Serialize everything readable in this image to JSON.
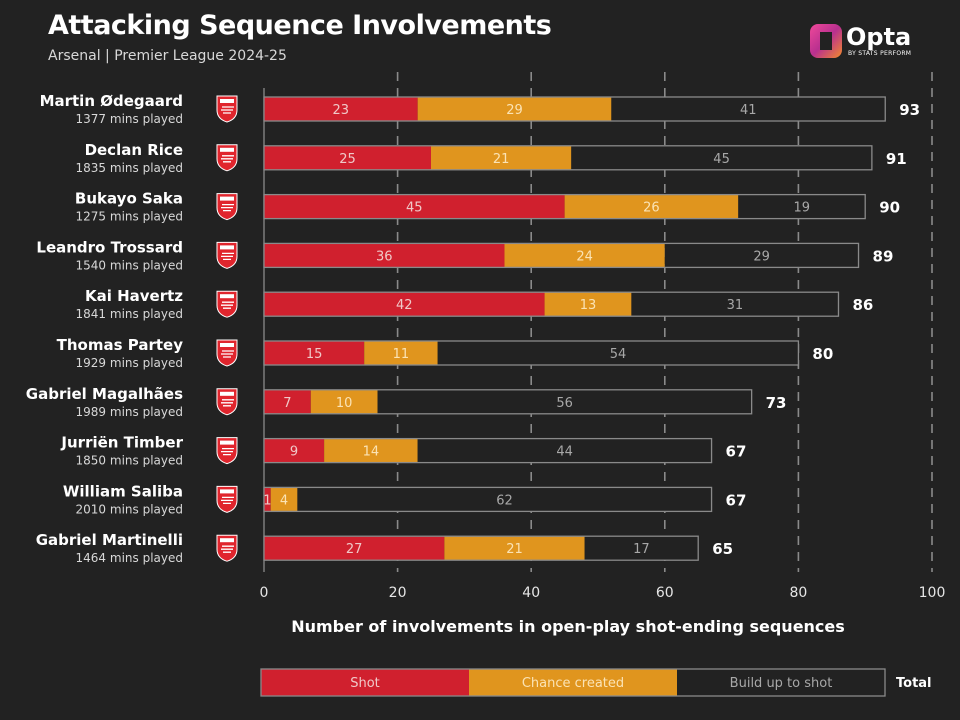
{
  "header": {
    "title": "Attacking Sequence Involvements",
    "subtitle": "Arsenal | Premier League 2024-25"
  },
  "logo": {
    "word": "Opta",
    "tag": "BY STATS PERFORM"
  },
  "colors": {
    "background": "#222222",
    "shot": "#d0202e",
    "chance": "#e0951e",
    "buildup": "#222222",
    "outline": "#8a8a8a",
    "grid": "#8a8a8a",
    "crest": "#e0252d"
  },
  "chart_data": {
    "type": "bar",
    "orientation": "horizontal",
    "stacked": true,
    "title": "Attacking Sequence Involvements",
    "subtitle": "Arsenal | Premier League 2024-25",
    "xlabel": "Number of involvements in open-play shot-ending sequences",
    "ylabel": "",
    "xlim": [
      0,
      100
    ],
    "xticks": [
      0,
      20,
      40,
      60,
      80,
      100
    ],
    "grid": "vertical dashed",
    "legend_position": "bottom",
    "categories": [
      "Martin Ødegaard",
      "Declan Rice",
      "Bukayo Saka",
      "Leandro Trossard",
      "Kai Havertz",
      "Thomas Partey",
      "Gabriel Magalhães",
      "Jurriën Timber",
      "William Saliba",
      "Gabriel Martinelli"
    ],
    "minutes": [
      "1377 mins played",
      "1835 mins played",
      "1275 mins played",
      "1540 mins played",
      "1841 mins played",
      "1929 mins played",
      "1989 mins played",
      "1850 mins played",
      "2010 mins played",
      "1464 mins played"
    ],
    "series": [
      {
        "name": "Shot",
        "color": "#d0202e",
        "text_color": "#f0c8c8",
        "values": [
          23,
          25,
          45,
          36,
          42,
          15,
          7,
          9,
          1,
          27
        ]
      },
      {
        "name": "Chance created",
        "color": "#e0951e",
        "text_color": "#fbe3b4",
        "values": [
          29,
          21,
          26,
          24,
          13,
          11,
          10,
          14,
          4,
          21
        ]
      },
      {
        "name": "Build up to shot",
        "color": "#222222",
        "text_color": "#a8a8a8",
        "values": [
          41,
          45,
          19,
          29,
          31,
          54,
          56,
          44,
          62,
          17
        ]
      }
    ],
    "totals": [
      93,
      91,
      90,
      89,
      86,
      80,
      73,
      67,
      67,
      65
    ],
    "total_label": "Total"
  }
}
